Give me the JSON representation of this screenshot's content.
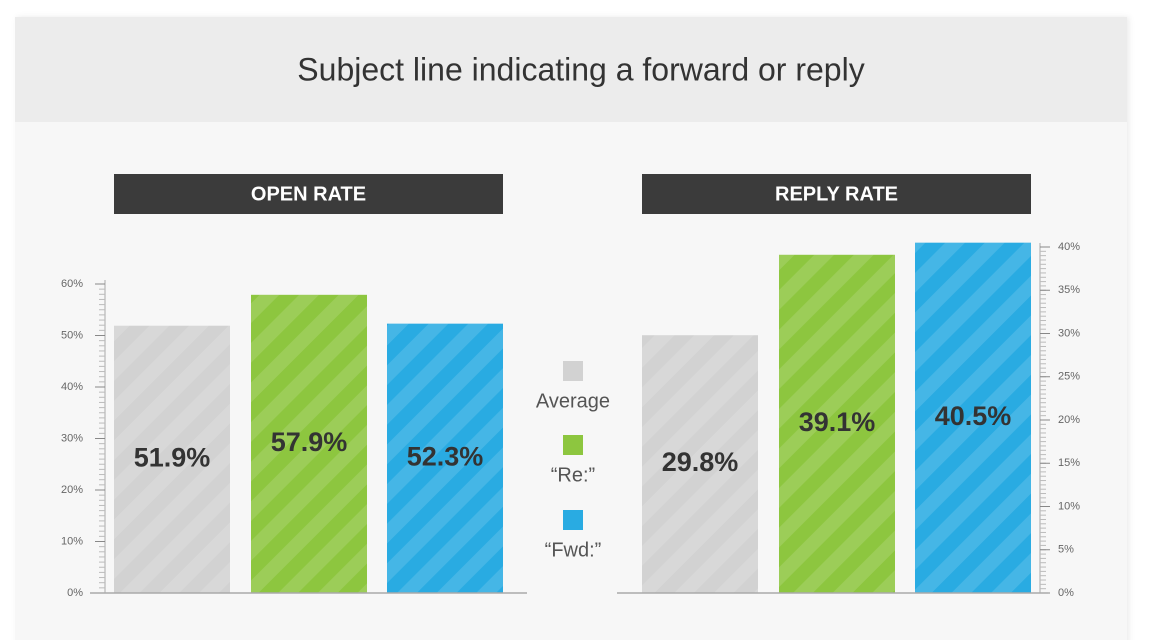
{
  "title": "Subject line indicating a forward or reply",
  "chart_data": [
    {
      "type": "bar",
      "title": "OPEN RATE",
      "categories": [
        "Average",
        "“Re:”",
        "“Fwd:”"
      ],
      "values": [
        51.9,
        57.9,
        52.3
      ],
      "value_labels": [
        "51.9%",
        "57.9%",
        "52.3%"
      ],
      "colors": [
        "#d2d2d2",
        "#8dc63f",
        "#29abe2"
      ],
      "ylim": [
        0,
        60
      ],
      "yticks": [
        {
          "value": 0,
          "label": "0%"
        },
        {
          "value": 10,
          "label": "10%"
        },
        {
          "value": 20,
          "label": "20%"
        },
        {
          "value": 30,
          "label": "30%"
        },
        {
          "value": 40,
          "label": "40%"
        },
        {
          "value": 50,
          "label": "50%"
        },
        {
          "value": 60,
          "label": "60%"
        }
      ],
      "y_axis_side": "left"
    },
    {
      "type": "bar",
      "title": "REPLY RATE",
      "categories": [
        "Average",
        "“Re:”",
        "“Fwd:”"
      ],
      "values": [
        29.8,
        39.1,
        40.5
      ],
      "value_labels": [
        "29.8%",
        "39.1%",
        "40.5%"
      ],
      "colors": [
        "#d2d2d2",
        "#8dc63f",
        "#29abe2"
      ],
      "ylim": [
        0,
        40
      ],
      "yticks": [
        {
          "value": 0,
          "label": "0%"
        },
        {
          "value": 5,
          "label": "5%"
        },
        {
          "value": 10,
          "label": "10%"
        },
        {
          "value": 15,
          "label": "15%"
        },
        {
          "value": 20,
          "label": "20%"
        },
        {
          "value": 25,
          "label": "25%"
        },
        {
          "value": 30,
          "label": "30%"
        },
        {
          "value": 35,
          "label": "35%"
        },
        {
          "value": 40,
          "label": "40%"
        }
      ],
      "y_axis_side": "right"
    }
  ]
}
